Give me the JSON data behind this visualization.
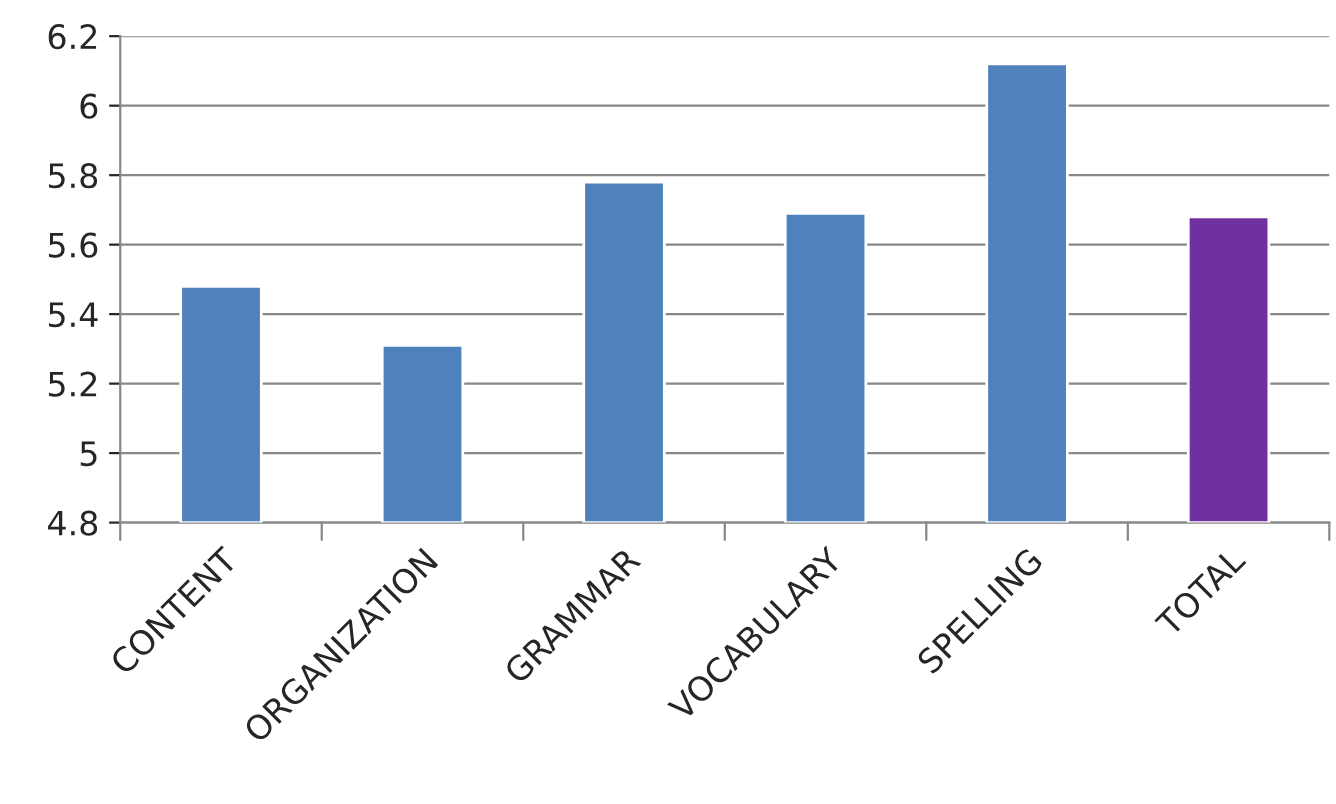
{
  "chart_data": {
    "type": "bar",
    "categories": [
      "CONTENT",
      "ORGANIZATION",
      "GRAMMAR",
      "VOCABULARY",
      "SPELLING",
      "TOTAL"
    ],
    "values": [
      5.48,
      5.31,
      5.78,
      5.69,
      6.12,
      5.68
    ],
    "colors": [
      "#4f81bd",
      "#4f81bd",
      "#4f81bd",
      "#4f81bd",
      "#4f81bd",
      "#7030a0"
    ],
    "ylim": [
      4.8,
      6.2
    ],
    "yticks": [
      4.8,
      5,
      5.2,
      5.4,
      5.6,
      5.8,
      6,
      6.2
    ],
    "grid": "y"
  }
}
